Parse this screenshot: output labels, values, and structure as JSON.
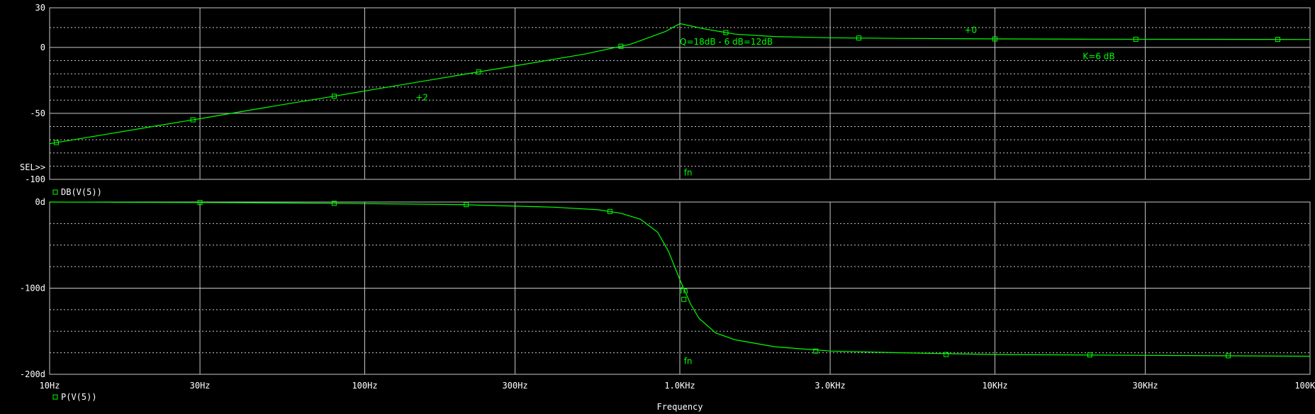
{
  "colors": {
    "background": "#000000",
    "axis": "#ffffff",
    "grid": "#c8c8c8",
    "trace": "#00ff00",
    "marker_top": "#00ff00",
    "marker_bottom_upper": "#ff8c00",
    "marker_bottom_lower": "#00ff00"
  },
  "chart_data": [
    {
      "type": "line",
      "name": "magnitude",
      "xscale": "log",
      "xlim": [
        10,
        100000
      ],
      "ylim": [
        -100,
        30
      ],
      "yticks": [
        30,
        0,
        -50,
        -100
      ],
      "ytick_labels": [
        "30",
        "0",
        "-50",
        "-100"
      ],
      "ymid_grid": [
        15,
        -10,
        -20,
        -30,
        -40,
        -60,
        -70,
        -80,
        -90
      ],
      "sel_label": "SEL>>",
      "series": [
        {
          "name": "DB(V(5))",
          "x": [
            10,
            15,
            20,
            30,
            50,
            80,
            100,
            150,
            200,
            300,
            500,
            700,
            900,
            1000,
            1200,
            1500,
            2000,
            3000,
            5000,
            10000,
            20000,
            50000,
            100000
          ],
          "y": [
            -73,
            -66,
            -61,
            -54,
            -45,
            -37,
            -33,
            -26,
            -21,
            -14,
            -5,
            2.5,
            12,
            18,
            14,
            10,
            8.2,
            7.3,
            6.8,
            6.4,
            6.2,
            6.1,
            6.0
          ],
          "marker_x": [
            10.5,
            28.5,
            80,
            230,
            650,
            1400,
            3700,
            10000,
            28000,
            79000
          ]
        }
      ],
      "annotations": [
        {
          "text": "Q=18dB - 6 dB=12dB",
          "x": 1000,
          "y": 2
        },
        {
          "text": "+0",
          "x": 8000,
          "y": 11
        },
        {
          "text": "K=6 dB",
          "x": 19000,
          "y": -9
        },
        {
          "text": "+2",
          "x": 145,
          "y": -40
        },
        {
          "text": "fn",
          "x": 1030,
          "y": -97
        }
      ],
      "legend": [
        {
          "text": "DB(V(5))",
          "color": "#00ff00"
        }
      ]
    },
    {
      "type": "line",
      "name": "phase",
      "xscale": "log",
      "xlim": [
        10,
        100000
      ],
      "ylim": [
        -200,
        0
      ],
      "yticks": [
        0,
        -100,
        -200
      ],
      "ytick_labels": [
        "0d",
        "-100d",
        "-200d"
      ],
      "ymid_grid": [
        -25,
        -50,
        -75,
        -125,
        -150,
        -175
      ],
      "series": [
        {
          "name": "P(V(5))",
          "x": [
            10,
            30,
            80,
            200,
            400,
            550,
            650,
            750,
            850,
            920,
            1000,
            1080,
            1150,
            1300,
            1500,
            2000,
            3000,
            5000,
            10000,
            30000,
            100000
          ],
          "y": [
            0,
            -0.6,
            -1.5,
            -3,
            -6,
            -9,
            -13,
            -20,
            -35,
            -57,
            -90,
            -118,
            -135,
            -152,
            -160,
            -168,
            -173,
            -175,
            -177,
            -178,
            -179
          ],
          "marker_x": [
            30,
            80,
            210,
            600,
            1030,
            2700,
            7000,
            20000,
            55000
          ],
          "marker_y": [
            -0.6,
            -1.5,
            -3,
            -11,
            -113,
            -173,
            -177,
            -177.5,
            -178.5
          ]
        }
      ],
      "annotations": [
        {
          "text": "fn",
          "x": 1000,
          "y": -106,
          "color": "#ff8c00"
        },
        {
          "text": "fn",
          "x": 1030,
          "y": -188
        }
      ],
      "xtick_values": [
        10,
        30,
        100,
        300,
        1000,
        3000,
        10000,
        30000,
        100000
      ],
      "xtick_labels": [
        "10Hz",
        "30Hz",
        "100Hz",
        "300Hz",
        "1.0KHz",
        "3.0KHz",
        "10KHz",
        "30KHz",
        "100KHz"
      ],
      "xlabel": "Frequency",
      "legend": [
        {
          "text": "P(V(5))",
          "color": "#00ff00"
        }
      ]
    }
  ]
}
